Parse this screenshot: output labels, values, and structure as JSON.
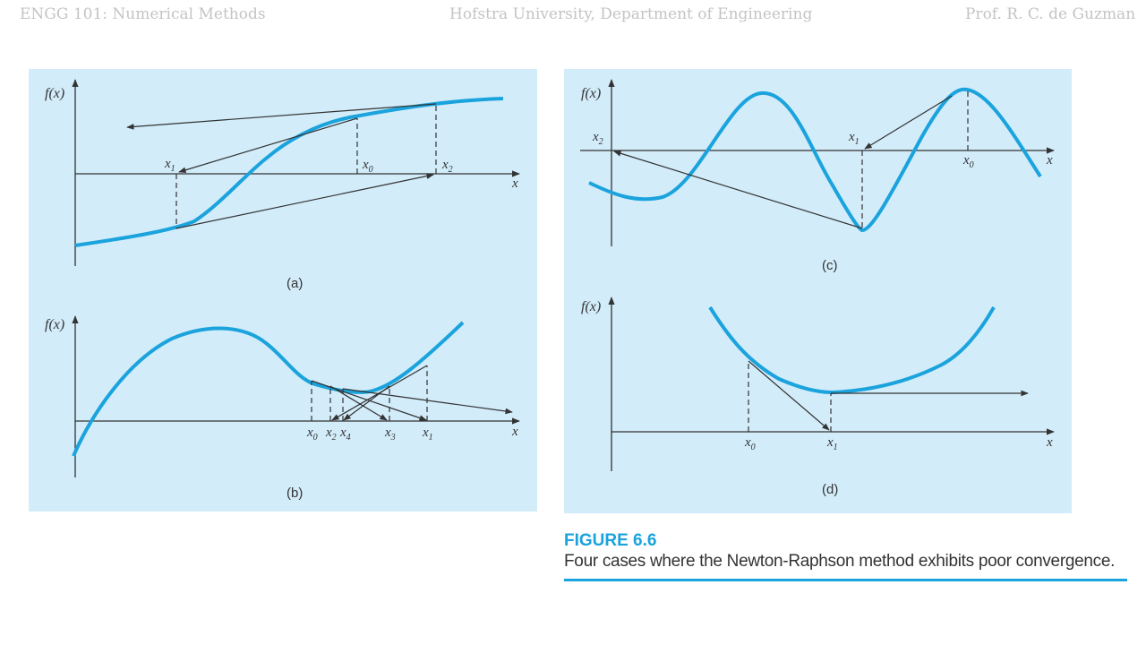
{
  "header": {
    "course": "ENGG 101: Numerical Methods",
    "institution": "Hofstra University, Department of Engineering",
    "instructor": "Prof. R. C. de Guzman"
  },
  "colors": {
    "curve": "#1aa3dc",
    "panel_bg": "#d2ecfa",
    "accent": "#1aa3dc",
    "ink": "#333333"
  },
  "figure": {
    "title": "FIGURE 6.6",
    "caption": "Four cases where the Newton-Raphson method exhibits poor convergence."
  },
  "panels": {
    "a": {
      "label": "(a)",
      "ylabel": "f(x)",
      "xlabel": "x",
      "points": [
        "x1",
        "x0",
        "x2"
      ]
    },
    "b": {
      "label": "(b)",
      "ylabel": "f(x)",
      "xlabel": "x",
      "points": [
        "x0",
        "x2",
        "x4",
        "x3",
        "x1"
      ]
    },
    "c": {
      "label": "(c)",
      "ylabel": "f(x)",
      "xlabel": "x",
      "points": [
        "x2",
        "x1",
        "x0"
      ]
    },
    "d": {
      "label": "(d)",
      "ylabel": "f(x)",
      "xlabel": "x",
      "points": [
        "x0",
        "x1"
      ]
    }
  }
}
